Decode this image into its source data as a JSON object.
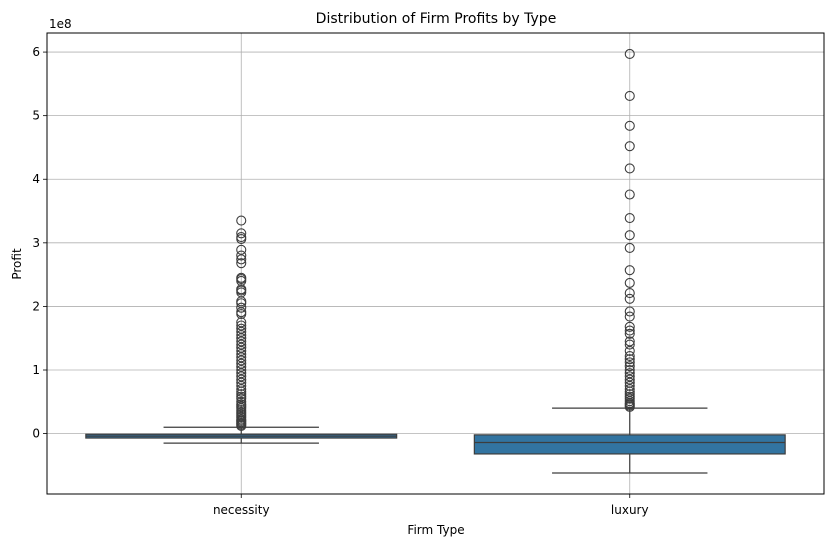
{
  "chart_data": {
    "type": "box",
    "title": "Distribution of Firm Profits by Type",
    "xlabel": "Firm Type",
    "ylabel": "Profit",
    "y_scale_label": "1e8",
    "categories": [
      "necessity",
      "luxury"
    ],
    "ylim": [
      -0.95,
      6.3
    ],
    "y_ticks": [
      0,
      1,
      2,
      3,
      4,
      5,
      6
    ],
    "y_tick_labels": [
      "0",
      "1",
      "2",
      "3",
      "4",
      "5",
      "6"
    ],
    "grid": true,
    "box_color": "#3274a1",
    "edge_color": "#3d3d3d",
    "boxes": [
      {
        "category": "necessity",
        "whisker_low": -0.15,
        "q1": -0.07,
        "median": -0.04,
        "q3": -0.01,
        "whisker_high": 0.1,
        "outliers": [
          3.35,
          3.15,
          3.09,
          3.06,
          2.89,
          2.8,
          2.74,
          2.68,
          2.45,
          2.43,
          2.4,
          2.27,
          2.25,
          2.22,
          2.08,
          2.05,
          1.98,
          1.91,
          1.88,
          1.75,
          1.7,
          1.65,
          1.6,
          1.55,
          1.5,
          1.45,
          1.4,
          1.35,
          1.3,
          1.25,
          1.2,
          1.15,
          1.1,
          1.05,
          1.0,
          0.95,
          0.9,
          0.85,
          0.8,
          0.75,
          0.7,
          0.66,
          0.62,
          0.58,
          0.55,
          0.5,
          0.46,
          0.43,
          0.4,
          0.37,
          0.34,
          0.31,
          0.28,
          0.25,
          0.22,
          0.2,
          0.18,
          0.16,
          0.14,
          0.12
        ]
      },
      {
        "category": "luxury",
        "whisker_low": -0.62,
        "q1": -0.32,
        "median": -0.14,
        "q3": -0.02,
        "whisker_high": 0.4,
        "outliers": [
          5.97,
          5.31,
          4.84,
          4.52,
          4.17,
          3.76,
          3.39,
          3.12,
          2.92,
          2.57,
          2.37,
          2.21,
          2.12,
          1.92,
          1.84,
          1.68,
          1.62,
          1.57,
          1.45,
          1.4,
          1.3,
          1.22,
          1.17,
          1.12,
          1.06,
          1.0,
          0.95,
          0.9,
          0.85,
          0.8,
          0.75,
          0.7,
          0.66,
          0.62,
          0.58,
          0.55,
          0.51,
          0.48,
          0.46,
          0.44,
          0.42
        ]
      }
    ]
  }
}
